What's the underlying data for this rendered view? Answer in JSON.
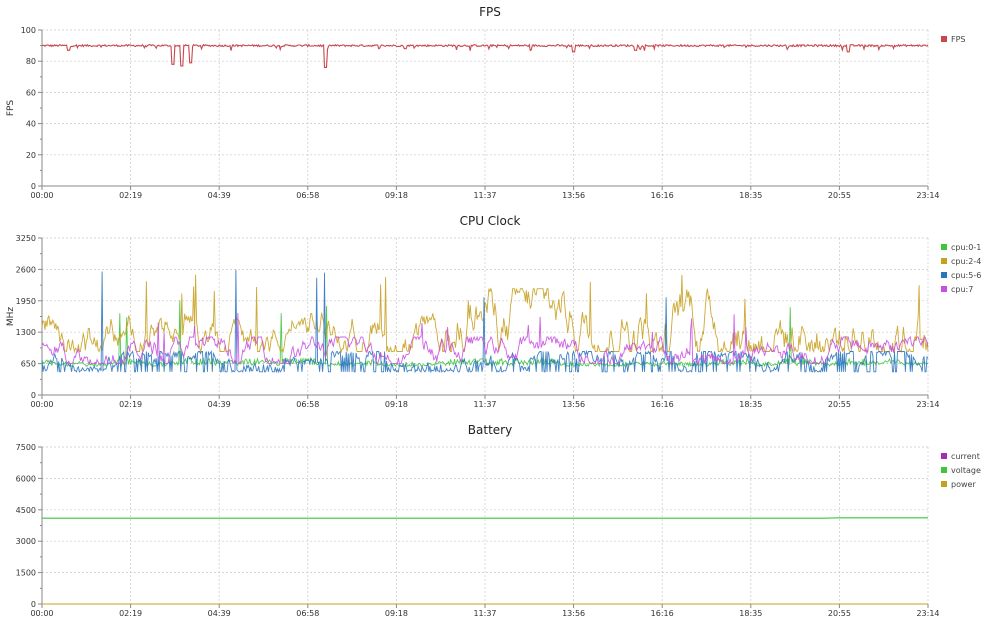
{
  "chart_data": [
    {
      "type": "line",
      "title": "FPS",
      "ylabel": "FPS",
      "ylim": [
        0,
        100
      ],
      "yticks": [
        0,
        20,
        40,
        60,
        80,
        100
      ],
      "xticks": [
        "00:00",
        "02:19",
        "04:39",
        "06:58",
        "09:18",
        "11:37",
        "13:56",
        "16:16",
        "18:35",
        "20:55",
        "23:14"
      ],
      "legend": "right",
      "grid": true,
      "series": [
        {
          "name": "FPS",
          "color": "#c9474c",
          "baseline": 90,
          "dips": [
            [
              0.03,
              87
            ],
            [
              0.148,
              78
            ],
            [
              0.158,
              77
            ],
            [
              0.168,
              79
            ],
            [
              0.32,
              76
            ],
            [
              0.41,
              88
            ],
            [
              0.6,
              86
            ],
            [
              0.67,
              87
            ],
            [
              0.91,
              86
            ]
          ]
        }
      ]
    },
    {
      "type": "line",
      "title": "CPU Clock",
      "ylabel": "MHz",
      "ylim": [
        0,
        3250
      ],
      "yticks": [
        0,
        650,
        1300,
        1950,
        2600,
        3250
      ],
      "xticks": [
        "00:00",
        "02:19",
        "04:39",
        "06:58",
        "09:18",
        "11:37",
        "13:56",
        "16:16",
        "18:35",
        "20:55",
        "23:14"
      ],
      "legend": "right",
      "grid": true,
      "series": [
        {
          "name": "cpu:0-1",
          "color": "#3ec43e",
          "typical": [
            600,
            750
          ],
          "peak": 2100
        },
        {
          "name": "cpu:2-4",
          "color": "#c8a020",
          "typical": [
            900,
            2200
          ],
          "peak": 2600
        },
        {
          "name": "cpu:5-6",
          "color": "#2a74c0",
          "typical": [
            500,
            900
          ],
          "peak": 2600
        },
        {
          "name": "cpu:7",
          "color": "#c94fe0",
          "typical": [
            650,
            1200
          ],
          "peak": 1700
        }
      ]
    },
    {
      "type": "line",
      "title": "Battery",
      "ylabel": "",
      "ylim": [
        0,
        7500
      ],
      "yticks": [
        0,
        1500,
        3000,
        4500,
        6000,
        7500
      ],
      "xticks": [
        "00:00",
        "02:19",
        "04:39",
        "06:58",
        "09:18",
        "11:37",
        "13:56",
        "16:16",
        "18:35",
        "20:55",
        "23:14"
      ],
      "legend": "right",
      "grid": true,
      "series": [
        {
          "name": "current",
          "color": "#a030b0",
          "value": 0
        },
        {
          "name": "voltage",
          "color": "#3ec43e",
          "value": 4100
        },
        {
          "name": "power",
          "color": "#c8a020",
          "value": 0
        }
      ]
    }
  ]
}
